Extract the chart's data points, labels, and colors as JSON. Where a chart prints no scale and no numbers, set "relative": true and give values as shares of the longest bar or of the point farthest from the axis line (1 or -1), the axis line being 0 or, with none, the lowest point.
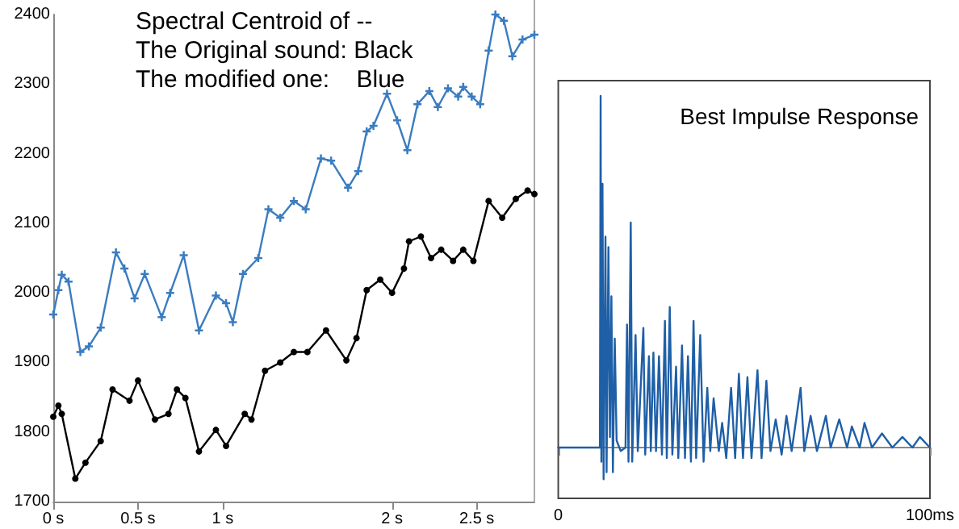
{
  "chart_data": [
    {
      "type": "line",
      "annotations": [
        "Spectral Centroid of --",
        "The Original sound: Black",
        "The modified one:    Blue"
      ],
      "xlim": [
        0,
        2.84
      ],
      "xticks": [
        {
          "value": 0,
          "label": "0 s"
        },
        {
          "value": 0.5,
          "label": "0.5 s"
        },
        {
          "value": 1,
          "label": "1 s"
        },
        {
          "value": 2,
          "label": "2 s"
        },
        {
          "value": 2.5,
          "label": "2.5 s"
        }
      ],
      "ylim": [
        1700,
        2400
      ],
      "yticks": [
        1700,
        1800,
        1900,
        2000,
        2100,
        2200,
        2300,
        2400
      ],
      "grid": false,
      "line_style": "solid",
      "series": [
        {
          "color": "#000000",
          "marker": "circle",
          "x": [
            0,
            0.03,
            0.05,
            0.13,
            0.19,
            0.28,
            0.35,
            0.45,
            0.5,
            0.6,
            0.68,
            0.73,
            0.78,
            0.86,
            0.96,
            1.02,
            1.13,
            1.17,
            1.25,
            1.34,
            1.42,
            1.5,
            1.61,
            1.73,
            1.79,
            1.85,
            1.93,
            2.0,
            2.07,
            2.1,
            2.17,
            2.23,
            2.29,
            2.36,
            2.42,
            2.48,
            2.57,
            2.65,
            2.73,
            2.8,
            2.84
          ],
          "values": [
            1822,
            1838,
            1826,
            1733,
            1756,
            1787,
            1861,
            1845,
            1874,
            1818,
            1826,
            1861,
            1849,
            1772,
            1803,
            1780,
            1826,
            1818,
            1888,
            1900,
            1915,
            1915,
            1946,
            1903,
            1935,
            2004,
            2019,
            2000,
            2035,
            2074,
            2081,
            2050,
            2062,
            2046,
            2062,
            2046,
            2132,
            2108,
            2135,
            2147,
            2142
          ]
        },
        {
          "color": "#3a7cc0",
          "marker": "cross",
          "x": [
            0,
            0.03,
            0.05,
            0.09,
            0.16,
            0.21,
            0.28,
            0.37,
            0.42,
            0.48,
            0.54,
            0.64,
            0.69,
            0.77,
            0.86,
            0.96,
            1.02,
            1.06,
            1.12,
            1.21,
            1.27,
            1.34,
            1.42,
            1.49,
            1.58,
            1.64,
            1.74,
            1.8,
            1.85,
            1.89,
            1.97,
            2.03,
            2.09,
            2.15,
            2.22,
            2.27,
            2.33,
            2.39,
            2.42,
            2.47,
            2.52,
            2.57,
            2.61,
            2.66,
            2.71,
            2.77,
            2.84
          ],
          "values": [
            1969,
            2004,
            2026,
            2016,
            1915,
            1923,
            1950,
            2058,
            2035,
            1992,
            2027,
            1965,
            2000,
            2054,
            1946,
            1996,
            1985,
            1958,
            2027,
            2050,
            2120,
            2108,
            2132,
            2120,
            2193,
            2190,
            2151,
            2175,
            2232,
            2240,
            2286,
            2248,
            2205,
            2271,
            2290,
            2267,
            2294,
            2282,
            2296,
            2282,
            2271,
            2348,
            2400,
            2391,
            2340,
            2364,
            2371
          ]
        }
      ]
    },
    {
      "type": "line",
      "title": "Best Impulse Response",
      "relative": true,
      "xlim": [
        0,
        100
      ],
      "xticks": [
        {
          "value": 0,
          "label": "0"
        },
        {
          "value": 100,
          "label": "100ms"
        }
      ],
      "grid": false,
      "marker": "none",
      "line_style": "solid",
      "series": [
        {
          "color": "#1f5fa6",
          "x": [
            0,
            11.2,
            11.4,
            11.6,
            11.9,
            12.2,
            12.7,
            13.0,
            13.5,
            13.9,
            14.3,
            14.7,
            15.2,
            15.7,
            16.8,
            18.1,
            18.5,
            18.9,
            19.5,
            19.9,
            20.8,
            21.4,
            22.9,
            23.4,
            24.4,
            24.9,
            25.6,
            26.3,
            27.1,
            27.9,
            28.7,
            29.2,
            30.0,
            30.7,
            31.7,
            32.3,
            33.3,
            34.1,
            34.9,
            35.7,
            36.4,
            37.1,
            38.2,
            39.1,
            40.1,
            40.9,
            41.8,
            43.2,
            44.1,
            45.2,
            46.5,
            47.6,
            48.6,
            49.7,
            50.9,
            52.0,
            53.6,
            54.7,
            56.0,
            57.1,
            58.5,
            60.1,
            61.4,
            62.8,
            65.2,
            66.2,
            67.9,
            69.6,
            72.0,
            73.3,
            75.6,
            77.7,
            79.0,
            81.1,
            82.4,
            84.4,
            87.1,
            89.9,
            92.6,
            95.3,
            97.3,
            100
          ],
          "values": [
            0,
            0,
            1,
            -0.04,
            0.75,
            -0.09,
            0.6,
            -0.07,
            0.57,
            0.03,
            0.43,
            -0.07,
            0.31,
            0.02,
            -0.01,
            0,
            0.35,
            -0.04,
            0.64,
            -0.04,
            0.32,
            -0.01,
            0.34,
            -0.02,
            0.26,
            -0.01,
            0.27,
            -0.01,
            0.26,
            -0.02,
            0.36,
            -0.03,
            0.4,
            -0.02,
            0.23,
            -0.03,
            0.29,
            -0.03,
            0.26,
            -0.04,
            0.36,
            -0.03,
            0.32,
            -0.04,
            0.17,
            -0.01,
            0.14,
            -0.01,
            0.07,
            -0.03,
            0.17,
            -0.03,
            0.21,
            -0.03,
            0.2,
            -0.03,
            0.22,
            -0.03,
            0.19,
            -0.01,
            0.08,
            -0.02,
            0.09,
            -0.01,
            0.17,
            -0.01,
            0.09,
            -0.01,
            0.09,
            0,
            0.08,
            0,
            0.06,
            0,
            0.07,
            0,
            0.04,
            0,
            0.03,
            0,
            0.03,
            0
          ]
        }
      ]
    }
  ]
}
